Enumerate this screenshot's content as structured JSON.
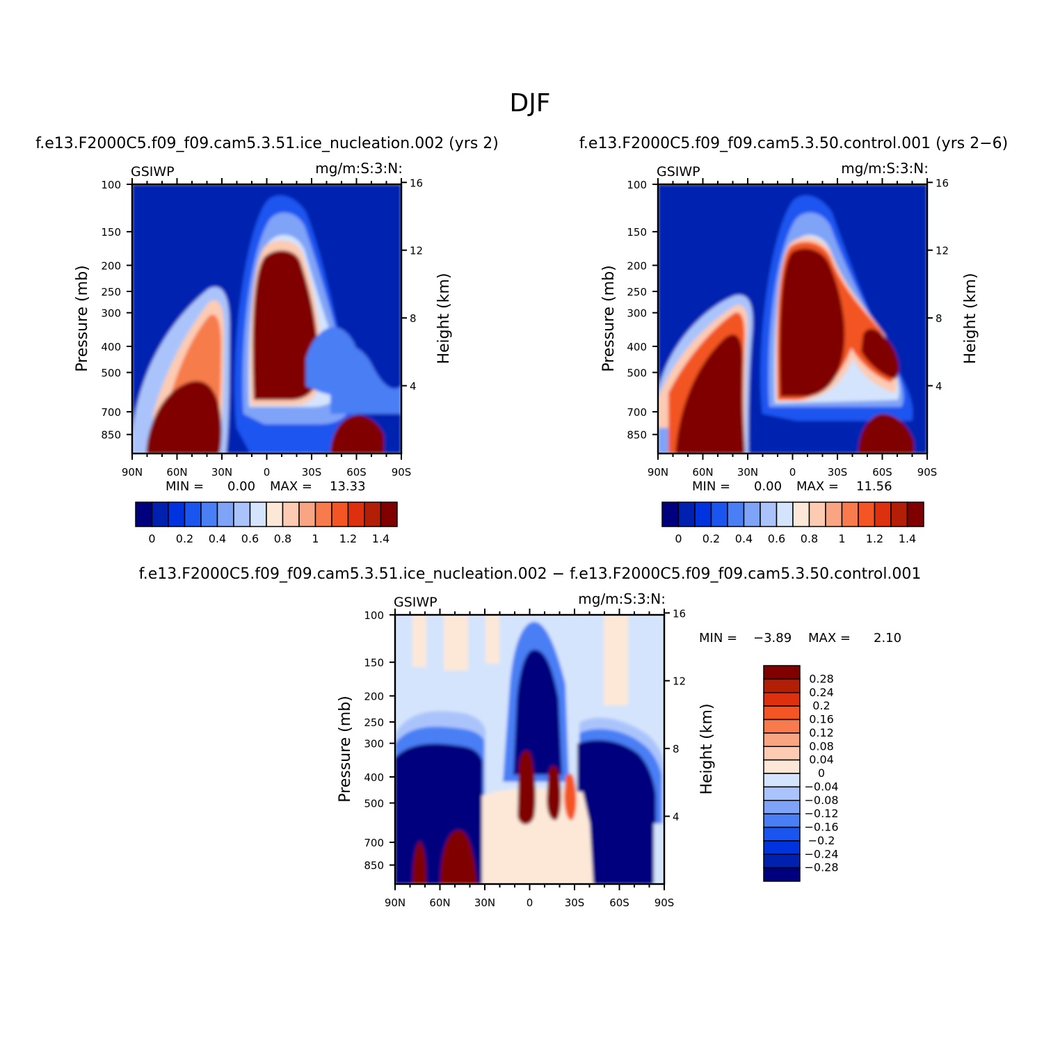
{
  "title": "DJF",
  "colors": {
    "abs": [
      "#00007f",
      "#0020b0",
      "#0033dd",
      "#1a55f0",
      "#4a7ef5",
      "#7fa3f7",
      "#aac4fb",
      "#d4e4fc",
      "#fde8d8",
      "#fccbb2",
      "#f9a583",
      "#f77b4c",
      "#f35524",
      "#dd300f",
      "#b31f06",
      "#800000"
    ],
    "diff": [
      "#800000",
      "#b31f06",
      "#dd300f",
      "#f35524",
      "#f77b4c",
      "#f9a583",
      "#fccbb2",
      "#fde8d8",
      "#d4e4fc",
      "#aac4fb",
      "#7fa3f7",
      "#4a7ef5",
      "#1a55f0",
      "#0033dd",
      "#0020b0",
      "#00007f"
    ]
  },
  "chart_data": [
    {
      "type": "heatmap",
      "panel": "top-left",
      "title": "f.e13.F2000C5.f09_f09.cam5.3.51.ice_nucleation.002 (yrs 2)",
      "left_string": "GSIWP",
      "right_string": "mg/m:S:3:N:",
      "ylabel": "Pressure (mb)",
      "ylabel_right": "Height (km)",
      "x_ticks": [
        "90N",
        "60N",
        "30N",
        "0",
        "30S",
        "60S",
        "90S"
      ],
      "y_ticks": [
        "100",
        "150",
        "200",
        "250",
        "300",
        "400",
        "500",
        "700",
        "850"
      ],
      "y2_ticks": [
        "16",
        "12",
        "8",
        "4"
      ],
      "ylim": [
        100,
        1000
      ],
      "min_label": "MIN =",
      "min_value": "0.00",
      "max_label": "MAX =",
      "max_value": "13.33",
      "colorbar_labels": [
        "0",
        "0.2",
        "0.4",
        "0.6",
        "0.8",
        "1",
        "1.2",
        "1.4"
      ],
      "contour_levels": [
        0,
        0.1,
        0.2,
        0.3,
        0.4,
        0.5,
        0.6,
        0.7,
        0.8,
        0.9,
        1.0,
        1.1,
        1.2,
        1.3,
        1.4
      ]
    },
    {
      "type": "heatmap",
      "panel": "top-right",
      "title": "f.e13.F2000C5.f09_f09.cam5.3.50.control.001 (yrs 2−6)",
      "left_string": "GSIWP",
      "right_string": "mg/m:S:3:N:",
      "ylabel": "Pressure (mb)",
      "ylabel_right": "Height (km)",
      "x_ticks": [
        "90N",
        "60N",
        "30N",
        "0",
        "30S",
        "60S",
        "90S"
      ],
      "y_ticks": [
        "100",
        "150",
        "200",
        "250",
        "300",
        "400",
        "500",
        "700",
        "850"
      ],
      "y2_ticks": [
        "16",
        "12",
        "8",
        "4"
      ],
      "ylim": [
        100,
        1000
      ],
      "min_label": "MIN =",
      "min_value": "0.00",
      "max_label": "MAX =",
      "max_value": "11.56",
      "colorbar_labels": [
        "0",
        "0.2",
        "0.4",
        "0.6",
        "0.8",
        "1",
        "1.2",
        "1.4"
      ],
      "contour_levels": [
        0,
        0.1,
        0.2,
        0.3,
        0.4,
        0.5,
        0.6,
        0.7,
        0.8,
        0.9,
        1.0,
        1.1,
        1.2,
        1.3,
        1.4
      ]
    },
    {
      "type": "heatmap",
      "panel": "bottom",
      "title": "f.e13.F2000C5.f09_f09.cam5.3.51.ice_nucleation.002 − f.e13.F2000C5.f09_f09.cam5.3.50.control.001",
      "left_string": "GSIWP",
      "right_string": "mg/m:S:3:N:",
      "ylabel": "Pressure (mb)",
      "ylabel_right": "Height (km)",
      "x_ticks": [
        "90N",
        "60N",
        "30N",
        "0",
        "30S",
        "60S",
        "90S"
      ],
      "y_ticks": [
        "100",
        "150",
        "200",
        "250",
        "300",
        "400",
        "500",
        "700",
        "850"
      ],
      "y2_ticks": [
        "16",
        "12",
        "8",
        "4"
      ],
      "ylim": [
        100,
        1000
      ],
      "min_label": "MIN =",
      "min_value": "−3.89",
      "max_label": "MAX =",
      "max_value": "2.10",
      "colorbar_labels": [
        "0.28",
        "0.24",
        "0.2",
        "0.16",
        "0.12",
        "0.08",
        "0.04",
        "0",
        "−0.04",
        "−0.08",
        "−0.12",
        "−0.16",
        "−0.2",
        "−0.24",
        "−0.28"
      ],
      "contour_levels": [
        -0.28,
        -0.24,
        -0.2,
        -0.16,
        -0.12,
        -0.08,
        -0.04,
        0,
        0.04,
        0.08,
        0.12,
        0.16,
        0.2,
        0.24,
        0.28
      ]
    }
  ]
}
